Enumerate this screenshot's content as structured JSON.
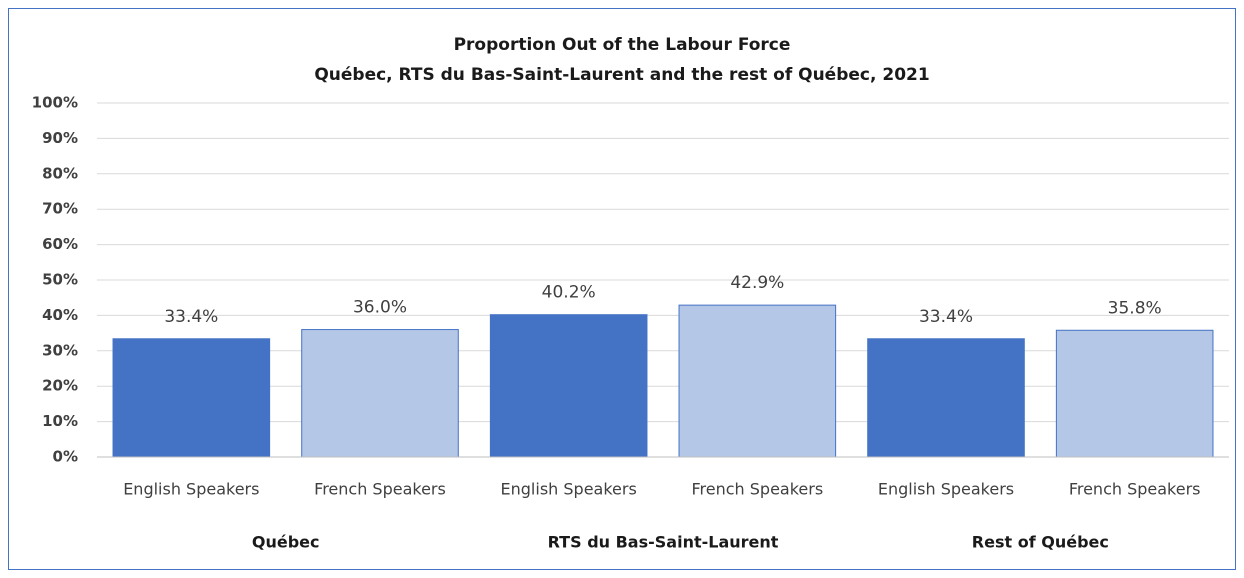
{
  "chart_data": {
    "type": "bar",
    "title": "Proportion Out of the Labour Force",
    "subtitle": "Québec, RTS du Bas-Saint-Laurent and the rest of Québec, 2021",
    "categories": [
      "Québec",
      "RTS du Bas-Saint-Laurent",
      "Rest of Québec"
    ],
    "series": [
      {
        "name": "English Speakers",
        "color": "#4472c4",
        "values": [
          33.4,
          40.2,
          33.4
        ],
        "value_labels": [
          "33.4%",
          "40.2%",
          "33.4%"
        ]
      },
      {
        "name": "French Speakers",
        "color": "#b4c7e7",
        "values": [
          36.0,
          42.9,
          35.8
        ],
        "value_labels": [
          "36.0%",
          "42.9%",
          "35.8%"
        ]
      }
    ],
    "ylim": [
      0,
      100
    ],
    "yticks": [
      {
        "value": 0,
        "label": "0%"
      },
      {
        "value": 10,
        "label": "10%"
      },
      {
        "value": 20,
        "label": "20%"
      },
      {
        "value": 30,
        "label": "30%"
      },
      {
        "value": 40,
        "label": "40%"
      },
      {
        "value": 50,
        "label": "50%"
      },
      {
        "value": 60,
        "label": "60%"
      },
      {
        "value": 70,
        "label": "70%"
      },
      {
        "value": 80,
        "label": "80%"
      },
      {
        "value": 90,
        "label": "90%"
      },
      {
        "value": 100,
        "label": "100%"
      }
    ],
    "grid": true
  }
}
